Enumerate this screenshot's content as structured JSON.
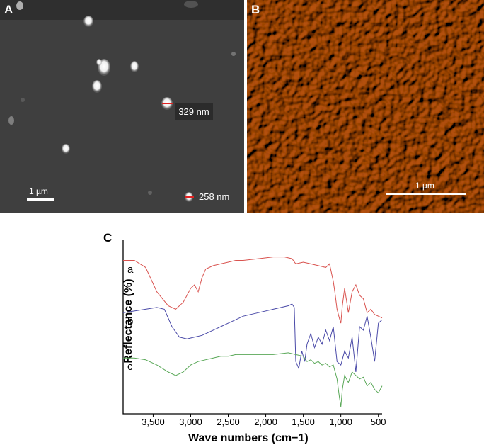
{
  "panels": {
    "a": {
      "letter": "A",
      "scale_bar": "1 µm",
      "size_labels": [
        "329 nm",
        "258 nm"
      ]
    },
    "b": {
      "letter": "B",
      "scale_bar": "1 µm"
    },
    "c": {
      "letter": "C"
    }
  },
  "chart_data": {
    "type": "line",
    "xlabel": "Wave numbers (cm−1)",
    "ylabel": "Reflectance (%)",
    "x_ticks": [
      "3,500",
      "3,000",
      "2,500",
      "2,000",
      "1,500",
      "1,000",
      "500"
    ],
    "x_tick_values": [
      3500,
      3000,
      2500,
      2000,
      1500,
      1000,
      500
    ],
    "xlim": [
      3900,
      450
    ],
    "x_reversed": true,
    "series": [
      {
        "name": "a",
        "color": "#d9534f",
        "x": [
          3900,
          3750,
          3600,
          3450,
          3300,
          3200,
          3100,
          3000,
          2950,
          2900,
          2850,
          2800,
          2700,
          2600,
          2500,
          2400,
          2300,
          2100,
          1900,
          1750,
          1650,
          1600,
          1500,
          1400,
          1300,
          1200,
          1150,
          1100,
          1080,
          1050,
          1020,
          1000,
          980,
          950,
          920,
          900,
          850,
          800,
          750,
          700,
          650,
          600,
          550,
          500,
          450
        ],
        "y": [
          88,
          88,
          84,
          70,
          62,
          60,
          64,
          72,
          74,
          70,
          78,
          83,
          85,
          86,
          87,
          88,
          88,
          89,
          90,
          90,
          89,
          86,
          87,
          86,
          85,
          84,
          86,
          76,
          70,
          60,
          55,
          52,
          62,
          72,
          64,
          58,
          70,
          74,
          68,
          66,
          58,
          60,
          57,
          56,
          55
        ]
      },
      {
        "name": "b",
        "color": "#4a4aa8",
        "x": [
          3900,
          3750,
          3600,
          3450,
          3350,
          3250,
          3150,
          3050,
          2950,
          2850,
          2700,
          2600,
          2500,
          2400,
          2300,
          2100,
          1900,
          1700,
          1650,
          1620,
          1600,
          1560,
          1520,
          1480,
          1450,
          1400,
          1350,
          1300,
          1250,
          1200,
          1150,
          1100,
          1050,
          1000,
          950,
          900,
          850,
          800,
          750,
          700,
          650,
          600,
          550,
          500,
          450
        ],
        "y": [
          58,
          59,
          60,
          61,
          60,
          50,
          44,
          43,
          44,
          45,
          48,
          50,
          52,
          54,
          56,
          58,
          60,
          62,
          63,
          61,
          30,
          26,
          36,
          30,
          40,
          46,
          38,
          44,
          40,
          48,
          42,
          50,
          30,
          28,
          36,
          32,
          44,
          24,
          50,
          48,
          56,
          44,
          30,
          52,
          54
        ]
      },
      {
        "name": "c",
        "color": "#5aa858",
        "x": [
          3900,
          3750,
          3600,
          3450,
          3300,
          3200,
          3100,
          3000,
          2900,
          2800,
          2700,
          2600,
          2500,
          2400,
          2300,
          2100,
          1900,
          1700,
          1600,
          1500,
          1450,
          1400,
          1350,
          1300,
          1250,
          1200,
          1150,
          1100,
          1050,
          1020,
          1000,
          980,
          950,
          900,
          850,
          800,
          750,
          700,
          650,
          600,
          550,
          500,
          450
        ],
        "y": [
          32,
          32,
          31,
          28,
          24,
          22,
          24,
          28,
          30,
          31,
          32,
          33,
          33,
          34,
          34,
          34,
          34,
          35,
          34,
          33,
          30,
          31,
          29,
          30,
          28,
          29,
          27,
          28,
          20,
          10,
          4,
          14,
          22,
          18,
          24,
          22,
          20,
          21,
          16,
          18,
          14,
          12,
          16
        ]
      }
    ]
  }
}
